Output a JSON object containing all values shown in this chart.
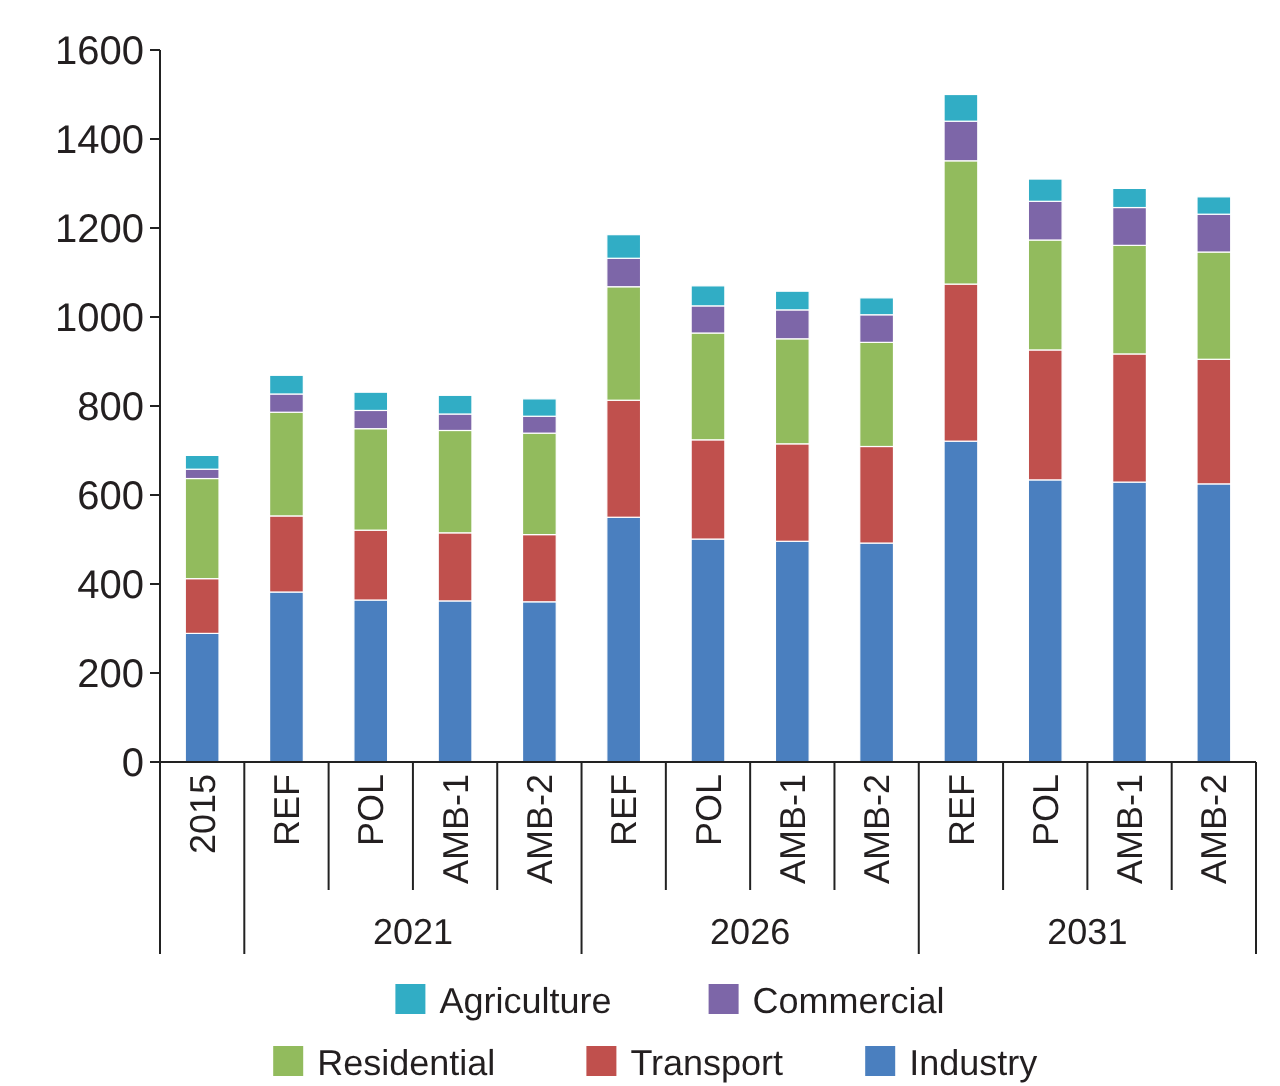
{
  "chart_data": {
    "type": "bar",
    "stacked": true,
    "categories": [
      "2015",
      "REF",
      "POL",
      "AMB-1",
      "AMB-2",
      "REF",
      "POL",
      "AMB-1",
      "AMB-2",
      "REF",
      "POL",
      "AMB-1",
      "AMB-2"
    ],
    "annotations": [
      "2021",
      "2026",
      "2031"
    ],
    "series": [
      {
        "name": "Industry",
        "color": "#4a7fbf",
        "values": [
          289,
          382,
          364,
          362,
          360,
          550,
          501,
          496,
          492,
          721,
          634,
          629,
          625
        ]
      },
      {
        "name": "Transport",
        "color": "#c0504d",
        "values": [
          123,
          171,
          157,
          153,
          151,
          263,
          223,
          219,
          217,
          353,
          292,
          288,
          280
        ]
      },
      {
        "name": "Residential",
        "color": "#92bb5d",
        "values": [
          225,
          233,
          228,
          230,
          228,
          255,
          240,
          236,
          234,
          277,
          247,
          244,
          241
        ]
      },
      {
        "name": "Commercial",
        "color": "#7d66a8",
        "values": [
          21,
          41,
          41,
          37,
          38,
          64,
          61,
          65,
          62,
          89,
          87,
          85,
          85
        ]
      },
      {
        "name": "Agriculture",
        "color": "#31adc5",
        "values": [
          31,
          42,
          41,
          42,
          39,
          53,
          45,
          42,
          38,
          60,
          50,
          43,
          39
        ]
      }
    ],
    "ylim": [
      0,
      1600
    ],
    "yticks": [
      0,
      200,
      400,
      600,
      800,
      1000,
      1200,
      1400,
      1600
    ],
    "grid": false,
    "legend": "bottom"
  }
}
